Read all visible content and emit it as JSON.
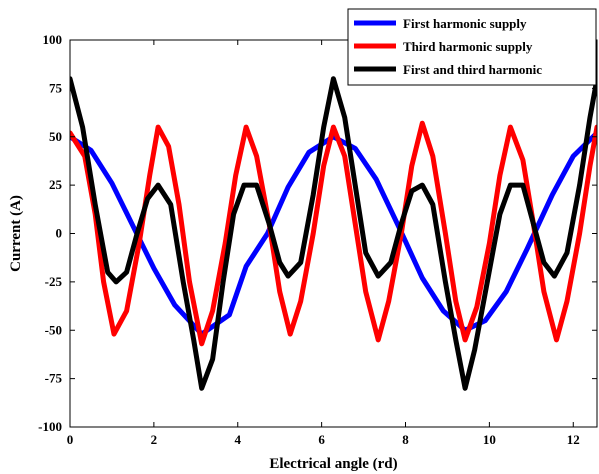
{
  "chart_data": {
    "type": "line",
    "title": "",
    "xlabel": "Electrical angle (rd)",
    "ylabel": "Current (A)",
    "xlim": [
      0,
      12.566
    ],
    "ylim": [
      -100,
      100
    ],
    "x_ticks": [
      0,
      2,
      4,
      6,
      8,
      10,
      12
    ],
    "y_ticks": [
      100,
      75,
      50,
      25,
      0,
      -25,
      -50,
      -75,
      -100
    ],
    "grid": false,
    "legend_position": "top-right",
    "series": [
      {
        "name": "First harmonic supply",
        "color": "#0000ff",
        "points": [
          [
            0.0,
            50
          ],
          [
            0.5,
            43
          ],
          [
            1.0,
            26
          ],
          [
            1.5,
            4
          ],
          [
            2.0,
            -18
          ],
          [
            2.5,
            -37
          ],
          [
            3.14,
            -52
          ],
          [
            3.8,
            -42
          ],
          [
            4.2,
            -17
          ],
          [
            4.71,
            0
          ],
          [
            5.2,
            24
          ],
          [
            5.7,
            42
          ],
          [
            6.28,
            50
          ],
          [
            6.8,
            44
          ],
          [
            7.3,
            28
          ],
          [
            7.85,
            3
          ],
          [
            8.4,
            -23
          ],
          [
            8.9,
            -40
          ],
          [
            9.42,
            -50
          ],
          [
            9.9,
            -45
          ],
          [
            10.4,
            -30
          ],
          [
            10.9,
            -8
          ],
          [
            11.5,
            20
          ],
          [
            12.0,
            40
          ],
          [
            12.566,
            52
          ]
        ]
      },
      {
        "name": "Third harmonic supply",
        "color": "#ff0000",
        "points": [
          [
            0.0,
            52
          ],
          [
            0.35,
            40
          ],
          [
            0.6,
            10
          ],
          [
            0.8,
            -25
          ],
          [
            1.05,
            -52
          ],
          [
            1.35,
            -40
          ],
          [
            1.65,
            -5
          ],
          [
            1.9,
            30
          ],
          [
            2.1,
            55
          ],
          [
            2.35,
            45
          ],
          [
            2.6,
            15
          ],
          [
            2.85,
            -25
          ],
          [
            3.14,
            -57
          ],
          [
            3.4,
            -40
          ],
          [
            3.7,
            -5
          ],
          [
            3.95,
            30
          ],
          [
            4.2,
            55
          ],
          [
            4.45,
            40
          ],
          [
            4.75,
            5
          ],
          [
            5.0,
            -30
          ],
          [
            5.25,
            -52
          ],
          [
            5.5,
            -35
          ],
          [
            5.8,
            0
          ],
          [
            6.05,
            35
          ],
          [
            6.28,
            55
          ],
          [
            6.55,
            40
          ],
          [
            6.8,
            5
          ],
          [
            7.05,
            -30
          ],
          [
            7.35,
            -55
          ],
          [
            7.6,
            -35
          ],
          [
            7.9,
            0
          ],
          [
            8.15,
            35
          ],
          [
            8.4,
            57
          ],
          [
            8.65,
            40
          ],
          [
            8.95,
            0
          ],
          [
            9.2,
            -35
          ],
          [
            9.42,
            -55
          ],
          [
            9.7,
            -38
          ],
          [
            10.0,
            -5
          ],
          [
            10.25,
            30
          ],
          [
            10.5,
            55
          ],
          [
            10.8,
            38
          ],
          [
            11.05,
            5
          ],
          [
            11.3,
            -30
          ],
          [
            11.6,
            -55
          ],
          [
            11.85,
            -35
          ],
          [
            12.15,
            0
          ],
          [
            12.4,
            35
          ],
          [
            12.566,
            55
          ]
        ]
      },
      {
        "name": "First and third harmonic",
        "color": "#000000",
        "points": [
          [
            0.0,
            80
          ],
          [
            0.3,
            55
          ],
          [
            0.6,
            15
          ],
          [
            0.9,
            -20
          ],
          [
            1.1,
            -25
          ],
          [
            1.35,
            -20
          ],
          [
            1.6,
            0
          ],
          [
            1.85,
            18
          ],
          [
            2.1,
            25
          ],
          [
            2.4,
            15
          ],
          [
            2.7,
            -25
          ],
          [
            2.95,
            -55
          ],
          [
            3.14,
            -80
          ],
          [
            3.4,
            -65
          ],
          [
            3.65,
            -25
          ],
          [
            3.9,
            10
          ],
          [
            4.15,
            25
          ],
          [
            4.45,
            25
          ],
          [
            4.75,
            5
          ],
          [
            5.0,
            -15
          ],
          [
            5.2,
            -22
          ],
          [
            5.5,
            -15
          ],
          [
            5.8,
            20
          ],
          [
            6.05,
            55
          ],
          [
            6.28,
            80
          ],
          [
            6.55,
            60
          ],
          [
            6.8,
            25
          ],
          [
            7.05,
            -10
          ],
          [
            7.35,
            -22
          ],
          [
            7.65,
            -15
          ],
          [
            7.9,
            5
          ],
          [
            8.15,
            22
          ],
          [
            8.4,
            25
          ],
          [
            8.65,
            15
          ],
          [
            8.95,
            -25
          ],
          [
            9.2,
            -55
          ],
          [
            9.42,
            -80
          ],
          [
            9.65,
            -60
          ],
          [
            9.95,
            -25
          ],
          [
            10.25,
            10
          ],
          [
            10.5,
            25
          ],
          [
            10.8,
            25
          ],
          [
            11.05,
            5
          ],
          [
            11.3,
            -15
          ],
          [
            11.55,
            -22
          ],
          [
            11.85,
            -10
          ],
          [
            12.15,
            25
          ],
          [
            12.4,
            60
          ],
          [
            12.566,
            80
          ]
        ]
      }
    ]
  }
}
